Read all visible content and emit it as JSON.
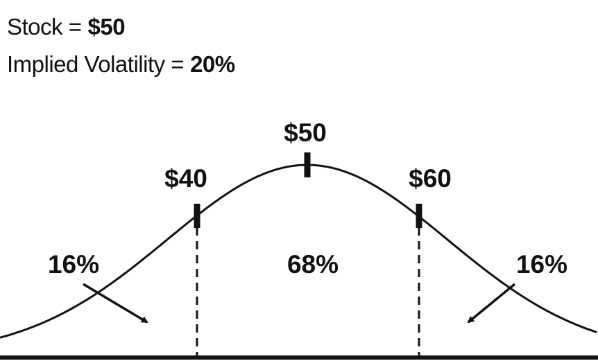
{
  "header": {
    "stock_label": "Stock =",
    "stock_value": "$50",
    "iv_label": "Implied Volatility =",
    "iv_value": "20%"
  },
  "curve": {
    "markers": [
      "$40",
      "$50",
      "$60"
    ],
    "regions": [
      "16%",
      "68%",
      "16%"
    ]
  }
}
